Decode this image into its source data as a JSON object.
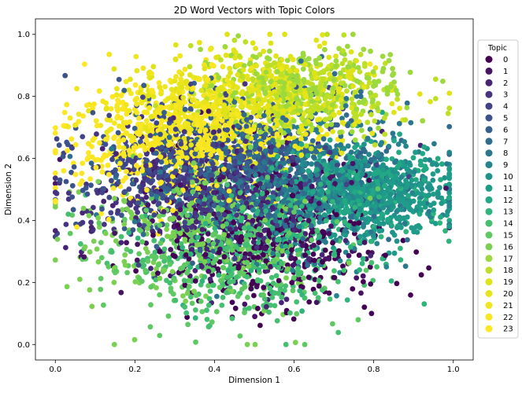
{
  "chart_data": {
    "type": "scatter",
    "title": "2D Word Vectors with Topic Colors",
    "xlabel": "Dimension 1",
    "ylabel": "Dimension 2",
    "xlim": [
      -0.05,
      1.05
    ],
    "ylim": [
      -0.05,
      1.05
    ],
    "xticks": [
      "0.0",
      "0.2",
      "0.4",
      "0.6",
      "0.8",
      "1.0"
    ],
    "yticks": [
      "0.0",
      "0.2",
      "0.4",
      "0.6",
      "0.8",
      "1.0"
    ],
    "grid": false,
    "legend": {
      "title": "Topic",
      "placement": "right",
      "entries": [
        "0",
        "1",
        "2",
        "3",
        "4",
        "5",
        "6",
        "7",
        "8",
        "9",
        "10",
        "11",
        "12",
        "13",
        "14",
        "15",
        "16",
        "17",
        "18",
        "19",
        "20",
        "21",
        "22",
        "23"
      ]
    },
    "colormap": "viridis",
    "topic_colors": [
      "#440154",
      "#471365",
      "#482475",
      "#463480",
      "#414487",
      "#3b528b",
      "#355f8d",
      "#2f6c8e",
      "#2a788e",
      "#25848e",
      "#21918c",
      "#1e9c89",
      "#22a884",
      "#2fb47c",
      "#44bf70",
      "#5ec962",
      "#7ad151",
      "#9bd93c",
      "#bddf26",
      "#dfe318",
      "#e7e419",
      "#f1e51d",
      "#f8e621",
      "#fde725"
    ],
    "series_summary": [
      {
        "topic": "0",
        "points_approx": 260,
        "center": [
          0.55,
          0.32
        ],
        "spread": [
          0.14,
          0.1
        ]
      },
      {
        "topic": "1",
        "points_approx": 260,
        "center": [
          0.5,
          0.42
        ],
        "spread": [
          0.17,
          0.12
        ]
      },
      {
        "topic": "2",
        "points_approx": 260,
        "center": [
          0.42,
          0.45
        ],
        "spread": [
          0.16,
          0.12
        ]
      },
      {
        "topic": "3",
        "points_approx": 260,
        "center": [
          0.35,
          0.52
        ],
        "spread": [
          0.15,
          0.1
        ]
      },
      {
        "topic": "4",
        "points_approx": 260,
        "center": [
          0.4,
          0.55
        ],
        "spread": [
          0.17,
          0.11
        ]
      },
      {
        "topic": "5",
        "points_approx": 260,
        "center": [
          0.33,
          0.58
        ],
        "spread": [
          0.15,
          0.1
        ]
      },
      {
        "topic": "6",
        "points_approx": 260,
        "center": [
          0.45,
          0.58
        ],
        "spread": [
          0.16,
          0.12
        ]
      },
      {
        "topic": "7",
        "points_approx": 260,
        "center": [
          0.55,
          0.55
        ],
        "spread": [
          0.16,
          0.12
        ]
      },
      {
        "topic": "8",
        "points_approx": 260,
        "center": [
          0.6,
          0.52
        ],
        "spread": [
          0.16,
          0.12
        ]
      },
      {
        "topic": "9",
        "points_approx": 260,
        "center": [
          0.68,
          0.5
        ],
        "spread": [
          0.13,
          0.1
        ]
      },
      {
        "topic": "10",
        "points_approx": 260,
        "center": [
          0.78,
          0.5
        ],
        "spread": [
          0.1,
          0.06
        ]
      },
      {
        "topic": "11",
        "points_approx": 260,
        "center": [
          0.82,
          0.47
        ],
        "spread": [
          0.09,
          0.06
        ]
      },
      {
        "topic": "12",
        "points_approx": 260,
        "center": [
          0.76,
          0.52
        ],
        "spread": [
          0.11,
          0.07
        ]
      },
      {
        "topic": "13",
        "points_approx": 260,
        "center": [
          0.6,
          0.38
        ],
        "spread": [
          0.14,
          0.1
        ]
      },
      {
        "topic": "14",
        "points_approx": 260,
        "center": [
          0.45,
          0.28
        ],
        "spread": [
          0.15,
          0.1
        ]
      },
      {
        "topic": "15",
        "points_approx": 260,
        "center": [
          0.4,
          0.3
        ],
        "spread": [
          0.15,
          0.11
        ]
      },
      {
        "topic": "16",
        "points_approx": 260,
        "center": [
          0.35,
          0.35
        ],
        "spread": [
          0.15,
          0.12
        ]
      },
      {
        "topic": "17",
        "points_approx": 260,
        "center": [
          0.62,
          0.82
        ],
        "spread": [
          0.13,
          0.07
        ]
      },
      {
        "topic": "18",
        "points_approx": 260,
        "center": [
          0.65,
          0.8
        ],
        "spread": [
          0.12,
          0.07
        ]
      },
      {
        "topic": "19",
        "points_approx": 260,
        "center": [
          0.55,
          0.82
        ],
        "spread": [
          0.14,
          0.07
        ]
      },
      {
        "topic": "20",
        "points_approx": 260,
        "center": [
          0.45,
          0.75
        ],
        "spread": [
          0.14,
          0.08
        ]
      },
      {
        "topic": "21",
        "points_approx": 260,
        "center": [
          0.38,
          0.75
        ],
        "spread": [
          0.13,
          0.08
        ]
      },
      {
        "topic": "22",
        "points_approx": 260,
        "center": [
          0.3,
          0.68
        ],
        "spread": [
          0.12,
          0.08
        ]
      },
      {
        "topic": "23",
        "points_approx": 260,
        "center": [
          0.28,
          0.62
        ],
        "spread": [
          0.14,
          0.1
        ]
      }
    ]
  }
}
